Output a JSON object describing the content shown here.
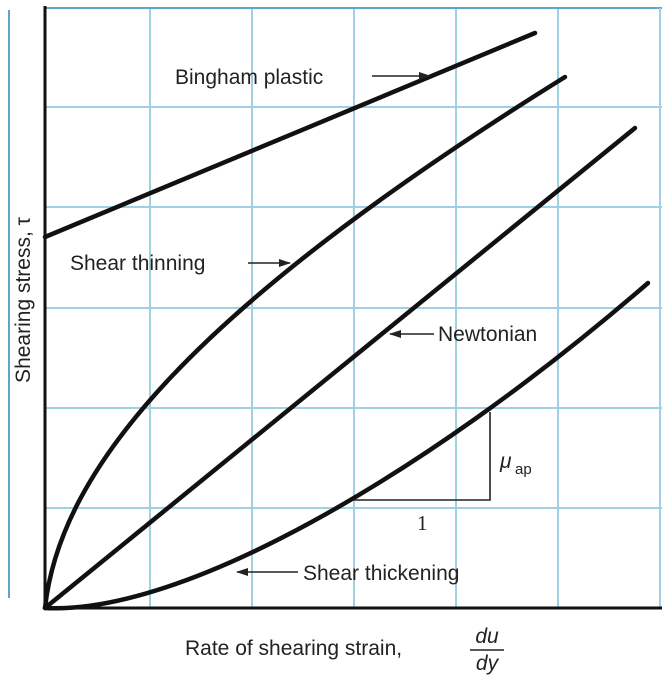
{
  "curves": {
    "bingham": "Bingham plastic",
    "thinning": "Shear thinning",
    "newtonian": "Newtonian",
    "thickening": "Shear thickening"
  },
  "slope": {
    "symbol": "μ",
    "subscript": "ap",
    "run": "1"
  },
  "axes": {
    "y_label": "Shearing stress, τ",
    "x_label": "Rate of shearing strain,",
    "x_fraction_top": "du",
    "x_fraction_bottom": "dy"
  }
}
